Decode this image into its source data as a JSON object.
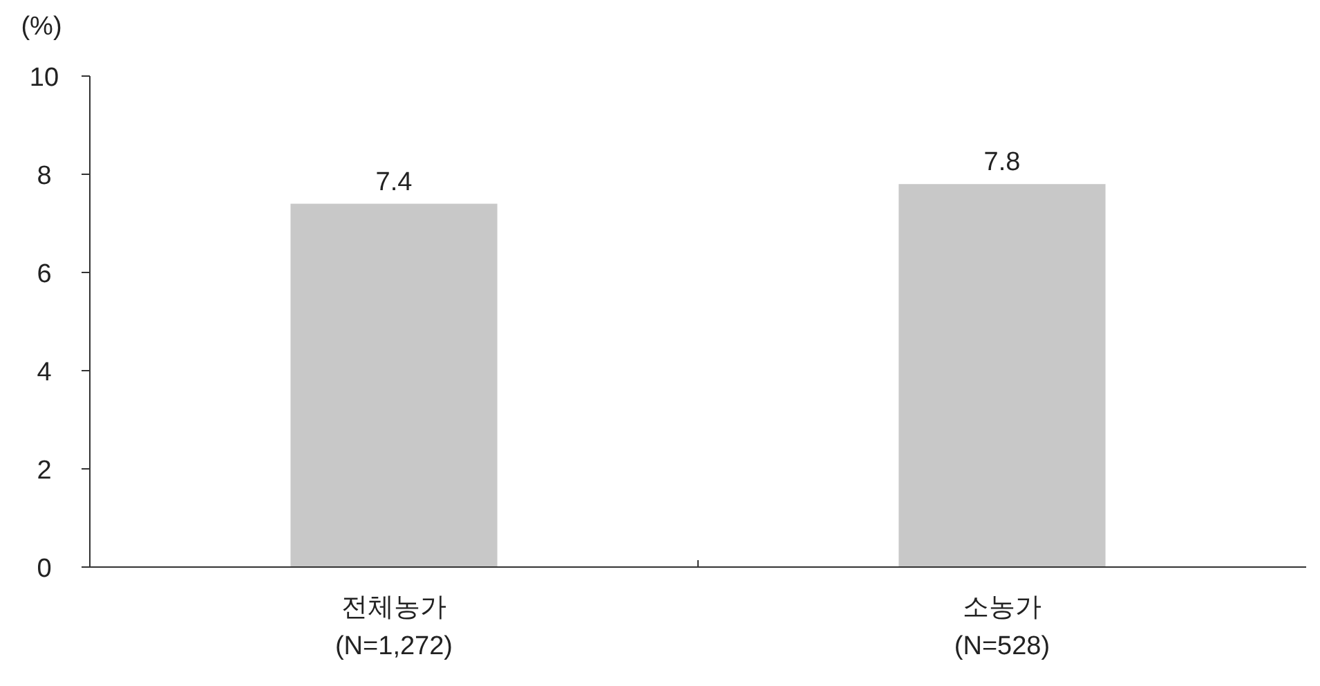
{
  "chart_data": {
    "type": "bar",
    "ylabel": "(%)",
    "categories": [
      "전체농가\n(N=1,272)",
      "소농가\n(N=528)"
    ],
    "values": [
      7.4,
      7.8
    ],
    "color": "#c8c8c8",
    "ylim": [
      0,
      10
    ],
    "yticks": [
      0,
      2,
      4,
      6,
      8,
      10
    ],
    "data_labels": true,
    "grid": false
  }
}
